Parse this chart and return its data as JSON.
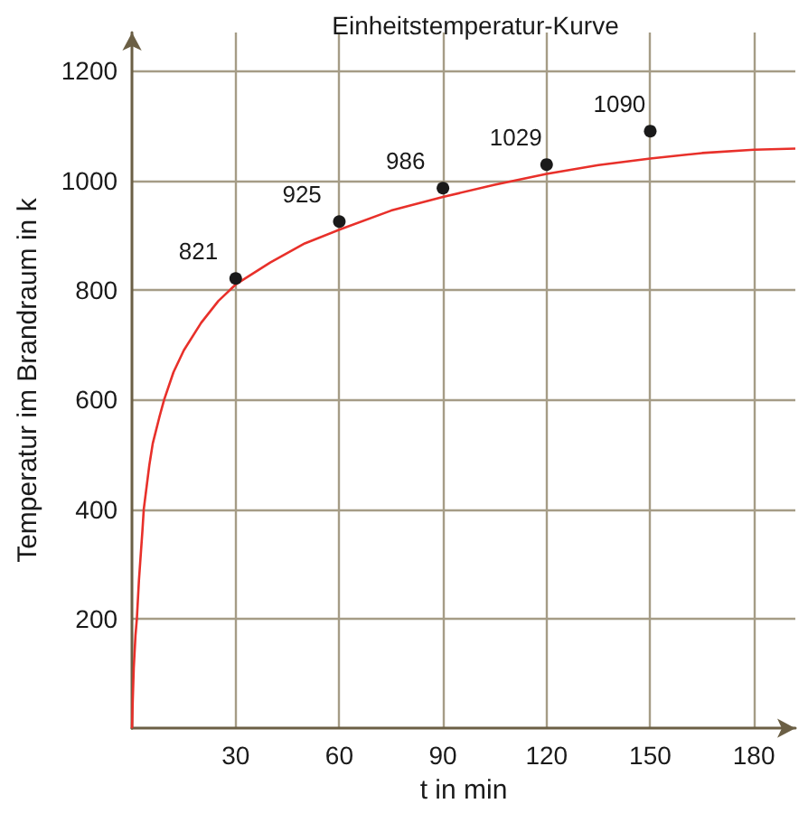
{
  "chart_data": {
    "type": "line",
    "title": "Einheitstemperatur-Kurve",
    "xlabel": "t in min",
    "ylabel": "Temperatur im Brandraum in k",
    "xlim": [
      0,
      192
    ],
    "xticks": [
      30,
      60,
      90,
      120,
      150,
      180
    ],
    "ylim": [
      0,
      1270
    ],
    "yticks": [
      200,
      400,
      600,
      800,
      1000,
      1200
    ],
    "grid": true,
    "series": [
      {
        "color": "#e8302a",
        "marker": "none",
        "x": [
          0,
          0.2,
          0.5,
          1,
          1.4,
          2,
          3,
          3.4,
          5,
          6,
          8,
          9.3,
          12,
          15,
          20,
          25,
          30,
          40,
          50,
          60,
          75,
          90,
          105,
          120,
          135,
          150,
          165,
          180,
          192
        ],
        "values": [
          0,
          50,
          110,
          170,
          200,
          270,
          360,
          400,
          480,
          520,
          570,
          600,
          650,
          690,
          740,
          780,
          810,
          850,
          885,
          910,
          945,
          970,
          992,
          1012,
          1028,
          1040,
          1050,
          1056,
          1058
        ]
      },
      {
        "type": "scatter",
        "color": "#1a1a1a",
        "marker": "circle",
        "x": [
          30,
          60,
          90,
          120,
          150
        ],
        "values": [
          821,
          925,
          986,
          1029,
          1090
        ],
        "value_labels": [
          "821",
          "925",
          "986",
          "1029",
          "1090"
        ]
      }
    ]
  }
}
